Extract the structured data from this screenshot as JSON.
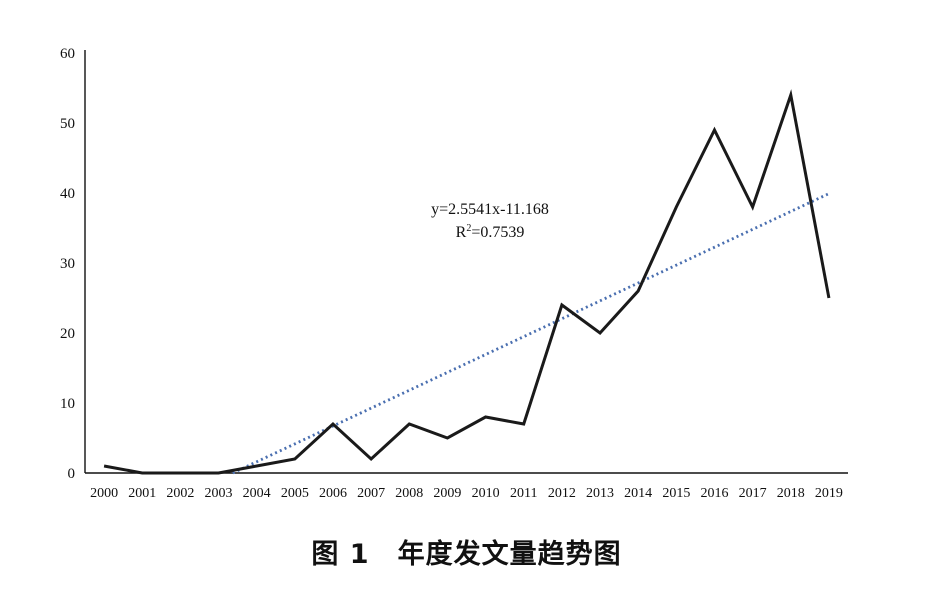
{
  "caption": "图 1　年度发文量趋势图",
  "chart_data": {
    "type": "line",
    "title": "",
    "xlabel": "",
    "ylabel": "",
    "categories": [
      "2000",
      "2001",
      "2002",
      "2003",
      "2004",
      "2005",
      "2006",
      "2007",
      "2008",
      "2009",
      "2010",
      "2011",
      "2012",
      "2013",
      "2014",
      "2015",
      "2016",
      "2017",
      "2018",
      "2019"
    ],
    "series": [
      {
        "values": [
          1,
          0,
          0,
          0,
          1,
          2,
          7,
          2,
          7,
          5,
          8,
          7,
          24,
          20,
          26,
          38,
          49,
          38,
          54,
          25
        ],
        "color": "#1a1a1a"
      }
    ],
    "trendline": {
      "type": "linear",
      "slope": 2.5541,
      "intercept": -11.168,
      "color": "#4a6fb0",
      "style": "dotted",
      "equation_label": "y=2.5541x-11.168",
      "r2_label_base": "R",
      "r2_label_sup": "2",
      "r2_label_rest": "=0.7539"
    },
    "ylim": [
      0,
      60
    ],
    "yticks": [
      0,
      10,
      20,
      30,
      40,
      50,
      60
    ],
    "grid": false,
    "legend": "none"
  }
}
